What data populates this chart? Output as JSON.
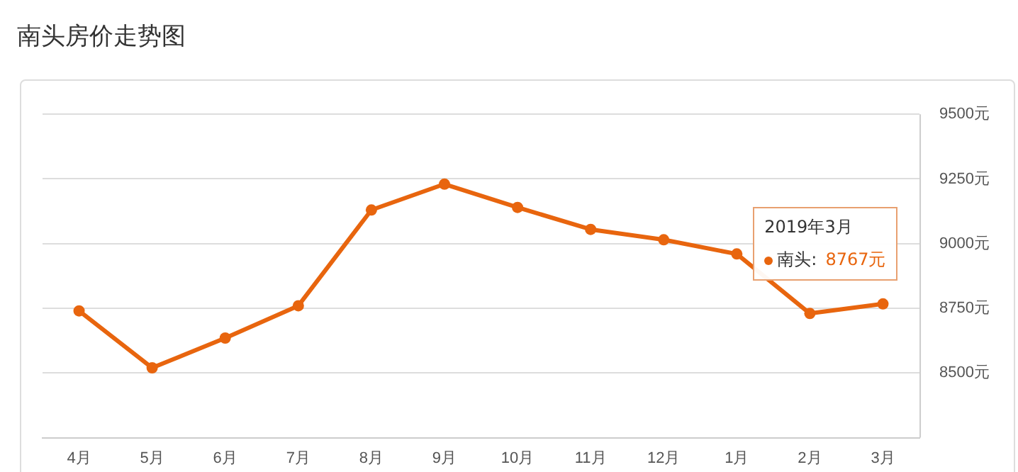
{
  "chart_data": {
    "type": "line",
    "title": "南头房价走势图",
    "categories": [
      "4月",
      "5月",
      "6月",
      "7月",
      "8月",
      "9月",
      "10月",
      "11月",
      "12月",
      "1月",
      "2月",
      "3月"
    ],
    "series": [
      {
        "name": "南头:",
        "color": "#e8650e",
        "values": [
          8740,
          8520,
          8635,
          8760,
          9130,
          9230,
          9140,
          9055,
          9015,
          8960,
          8730,
          8767
        ],
        "value_labels": [
          null,
          null,
          null,
          null,
          null,
          null,
          null,
          null,
          null,
          null,
          null,
          "8767元"
        ]
      }
    ],
    "annotations": [
      "2019年3月"
    ],
    "ylim": [
      8250,
      9500
    ],
    "yticks": [
      {
        "value": 8500,
        "label": "8500元"
      },
      {
        "value": 8750,
        "label": "8750元"
      },
      {
        "value": 9000,
        "label": "9000元"
      },
      {
        "value": 9250,
        "label": "9250元"
      },
      {
        "value": 9500,
        "label": "9500元"
      }
    ],
    "grid": "y",
    "marker": "circle",
    "line_style": "solid",
    "legend": "right"
  }
}
